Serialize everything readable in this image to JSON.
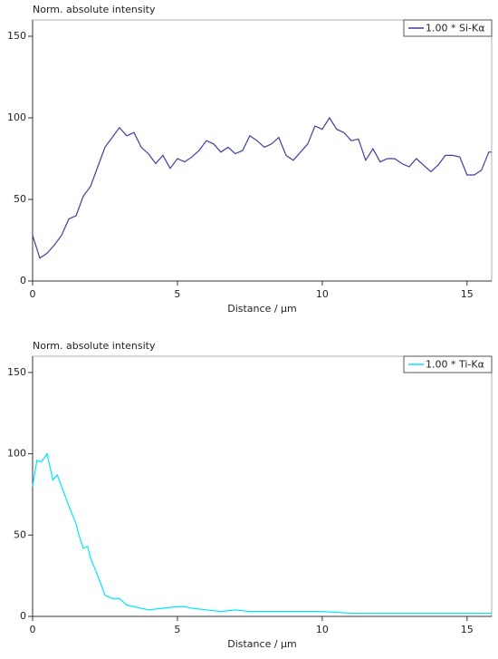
{
  "chart_data": [
    {
      "type": "line",
      "title": "Norm. absolute intensity",
      "x_label": "Distance / µm",
      "x": [
        0,
        0.25,
        0.5,
        0.75,
        1,
        1.25,
        1.5,
        1.75,
        2,
        2.25,
        2.5,
        2.75,
        3,
        3.25,
        3.5,
        3.75,
        4,
        4.25,
        4.5,
        4.75,
        5,
        5.25,
        5.5,
        5.75,
        6,
        6.25,
        6.5,
        6.75,
        7,
        7.25,
        7.5,
        7.75,
        8,
        8.25,
        8.5,
        8.75,
        9,
        9.25,
        9.5,
        9.75,
        10,
        10.25,
        10.5,
        10.75,
        11,
        11.25,
        11.5,
        11.75,
        12,
        12.25,
        12.5,
        12.75,
        13,
        13.25,
        13.5,
        13.75,
        14,
        14.25,
        14.5,
        14.75,
        15,
        15.25,
        15.5,
        15.75,
        15.85
      ],
      "series": [
        {
          "name": "1.00 * Si-Kα",
          "color": "#3f3f9f",
          "values": [
            28,
            14,
            17,
            22,
            28,
            38,
            40,
            52,
            58,
            70,
            82,
            88,
            94,
            89,
            91,
            82,
            78,
            72,
            77,
            69,
            75,
            73,
            76,
            80,
            86,
            84,
            79,
            82,
            78,
            80,
            89,
            86,
            82,
            84,
            88,
            77,
            74,
            79,
            84,
            95,
            93,
            100,
            93,
            91,
            86,
            87,
            74,
            81,
            73,
            75,
            75,
            72,
            70,
            75,
            71,
            67,
            71,
            77,
            77,
            76,
            65,
            65,
            68,
            79,
            79
          ]
        }
      ],
      "xlim": [
        0,
        15.85
      ],
      "ylim": [
        0,
        160
      ],
      "xticks": [
        0,
        5,
        10,
        15
      ],
      "yticks": [
        0,
        50,
        100,
        150
      ],
      "legend": "upper right"
    },
    {
      "type": "line",
      "title": "Norm. absolute intensity",
      "x_label": "Distance / µm",
      "x": [
        0,
        0.15,
        0.3,
        0.5,
        0.7,
        0.85,
        1,
        1.25,
        1.5,
        1.6,
        1.75,
        1.9,
        2,
        2.25,
        2.5,
        2.75,
        3,
        3.25,
        3.5,
        3.75,
        4,
        4.5,
        5,
        5.25,
        5.5,
        6,
        6.5,
        7,
        7.5,
        8,
        9,
        10,
        11,
        12,
        13,
        14,
        15,
        15.85
      ],
      "series": [
        {
          "name": "1.00 * Ti-Kα",
          "color": "#00e5ff",
          "values": [
            80,
            96,
            95,
            100,
            84,
            87,
            80,
            68,
            57,
            50,
            42,
            43,
            36,
            25,
            13,
            11,
            11,
            7,
            6,
            5,
            4,
            5,
            6,
            6,
            5,
            4,
            3,
            4,
            3,
            3,
            3,
            3,
            2,
            2,
            2,
            2,
            2,
            2
          ]
        }
      ],
      "xlim": [
        0,
        15.85
      ],
      "ylim": [
        0,
        160
      ],
      "xticks": [
        0,
        5,
        10,
        15
      ],
      "yticks": [
        0,
        50,
        100,
        150
      ],
      "legend": "upper right"
    }
  ]
}
